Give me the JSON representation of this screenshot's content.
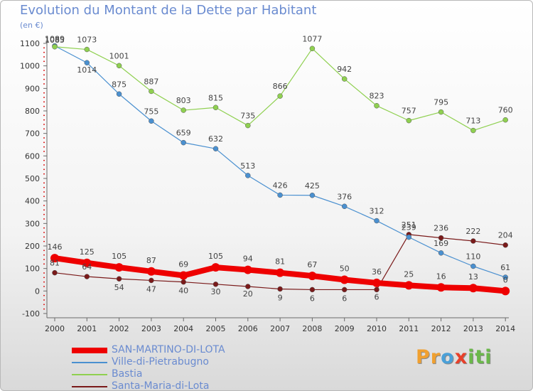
{
  "title": "Evolution du Montant de la Dette par Habitant",
  "unit": "(en €)",
  "logo": {
    "letters": [
      "P",
      "r",
      "o",
      "x",
      "i",
      "t",
      "i"
    ],
    "colors": [
      "#f0a030",
      "#f0a030",
      "#4aa0d8",
      "#e8402a",
      "#6ab84a",
      "#6ab84a",
      "#6ab84a"
    ]
  },
  "chart_data": {
    "type": "line",
    "title": "Evolution du Montant de la Dette par Habitant",
    "ylabel": "(en €)",
    "xlabel": "",
    "x": [
      "2000",
      "2001",
      "2002",
      "2003",
      "2004",
      "2005",
      "2006",
      "2007",
      "2008",
      "2009",
      "2010",
      "2011",
      "2012",
      "2013",
      "2014"
    ],
    "ylim": [
      -100,
      1100
    ],
    "yticks": [
      -100,
      0,
      100,
      200,
      300,
      400,
      500,
      600,
      700,
      800,
      900,
      1000,
      1100
    ],
    "grid": false,
    "legend_position": "bottom-left",
    "series": [
      {
        "name": "SAN-MARTINO-DI-LOTA",
        "color": "#ee0000",
        "values": [
          146,
          125,
          105,
          87,
          69,
          105,
          94,
          81,
          67,
          50,
          36,
          25,
          16,
          13,
          0
        ]
      },
      {
        "name": "Ville-di-Pietrabugno",
        "color": "#4a90d0",
        "values": [
          1089,
          1014,
          875,
          755,
          659,
          632,
          513,
          426,
          425,
          376,
          312,
          239,
          169,
          110,
          61
        ]
      },
      {
        "name": "Bastia",
        "color": "#8fd050",
        "values": [
          1085,
          1073,
          1001,
          887,
          803,
          815,
          735,
          866,
          1077,
          942,
          823,
          757,
          795,
          713,
          760
        ]
      },
      {
        "name": "Santa-Maria-di-Lota",
        "color": "#7a1a1a",
        "values": [
          81,
          64,
          54,
          47,
          40,
          30,
          20,
          9,
          6,
          6,
          6,
          251,
          236,
          222,
          204
        ]
      }
    ]
  }
}
